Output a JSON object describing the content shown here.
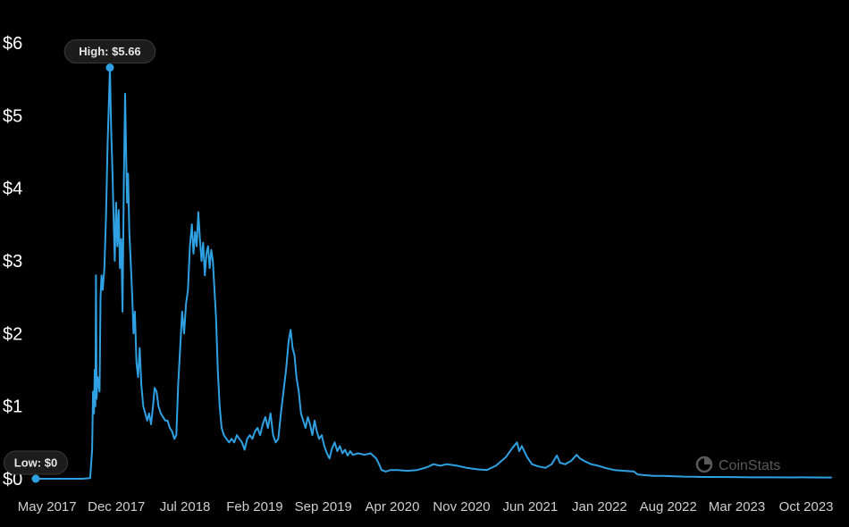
{
  "colors": {
    "background": "#000000",
    "line": "#2fa1e3",
    "pill_bg": "#1c1c1c",
    "pill_border": "#3a3a3a"
  },
  "watermark": {
    "icon": "coinstats-logo-icon",
    "text": "CoinStats"
  },
  "chart_data": {
    "type": "line",
    "title": "",
    "xlabel": "",
    "ylabel": "",
    "y_ticks": [
      "$0",
      "$1",
      "$2",
      "$3",
      "$4",
      "$5",
      "$6"
    ],
    "y_tick_values": [
      0,
      1,
      2,
      3,
      4,
      5,
      6
    ],
    "ylim": [
      0,
      6
    ],
    "x_ticks": [
      "May 2017",
      "Dec 2017",
      "Jul 2018",
      "Feb 2019",
      "Sep 2019",
      "Apr 2020",
      "Nov 2020",
      "Jun 2021",
      "Jan 2022",
      "Aug 2022",
      "Mar 2023",
      "Oct 2023"
    ],
    "x_tick_dates": [
      "2017-05-15",
      "2017-12-15",
      "2018-07-15",
      "2019-02-15",
      "2019-09-15",
      "2020-04-15",
      "2020-11-15",
      "2021-06-15",
      "2022-01-15",
      "2022-08-15",
      "2023-03-15",
      "2023-10-15"
    ],
    "xlim": [
      "2017-04-10",
      "2023-12-31"
    ],
    "grid": false,
    "annotations": [
      {
        "label": "High: $5.66",
        "x": "2017-11-25",
        "y": 5.66
      },
      {
        "label": "Low: $0",
        "x": "2017-04-10",
        "y": 0
      }
    ],
    "series": [
      {
        "points": [
          [
            "2017-04-10",
            0
          ],
          [
            "2017-05-01",
            0
          ],
          [
            "2017-06-01",
            0
          ],
          [
            "2017-07-01",
            0
          ],
          [
            "2017-08-01",
            0
          ],
          [
            "2017-09-01",
            0
          ],
          [
            "2017-09-25",
            0.01
          ],
          [
            "2017-10-01",
            0.4
          ],
          [
            "2017-10-04",
            1.2
          ],
          [
            "2017-10-07",
            0.9
          ],
          [
            "2017-10-09",
            1.5
          ],
          [
            "2017-10-11",
            1.0
          ],
          [
            "2017-10-13",
            2.8
          ],
          [
            "2017-10-15",
            1.1
          ],
          [
            "2017-10-18",
            1.4
          ],
          [
            "2017-10-21",
            1.3
          ],
          [
            "2017-10-24",
            1.2
          ],
          [
            "2017-10-27",
            2.5
          ],
          [
            "2017-10-30",
            2.8
          ],
          [
            "2017-11-03",
            2.6
          ],
          [
            "2017-11-08",
            2.9
          ],
          [
            "2017-11-13",
            3.6
          ],
          [
            "2017-11-18",
            4.6
          ],
          [
            "2017-11-25",
            5.66
          ],
          [
            "2017-11-29",
            4.8
          ],
          [
            "2017-12-03",
            4.2
          ],
          [
            "2017-12-07",
            3.5
          ],
          [
            "2017-12-10",
            3.0
          ],
          [
            "2017-12-14",
            3.8
          ],
          [
            "2017-12-18",
            3.2
          ],
          [
            "2017-12-22",
            3.7
          ],
          [
            "2017-12-26",
            2.9
          ],
          [
            "2017-12-30",
            3.3
          ],
          [
            "2018-01-03",
            2.3
          ],
          [
            "2018-01-07",
            4.1
          ],
          [
            "2018-01-11",
            5.3
          ],
          [
            "2018-01-14",
            4.5
          ],
          [
            "2018-01-17",
            3.8
          ],
          [
            "2018-01-20",
            4.2
          ],
          [
            "2018-01-24",
            3.4
          ],
          [
            "2018-01-28",
            3.0
          ],
          [
            "2018-02-02",
            2.5
          ],
          [
            "2018-02-06",
            2.0
          ],
          [
            "2018-02-10",
            2.3
          ],
          [
            "2018-02-15",
            1.6
          ],
          [
            "2018-02-20",
            1.4
          ],
          [
            "2018-02-25",
            1.8
          ],
          [
            "2018-03-02",
            1.3
          ],
          [
            "2018-03-08",
            1.0
          ],
          [
            "2018-03-14",
            0.9
          ],
          [
            "2018-03-20",
            0.8
          ],
          [
            "2018-03-26",
            0.9
          ],
          [
            "2018-04-01",
            0.75
          ],
          [
            "2018-04-07",
            1.0
          ],
          [
            "2018-04-12",
            1.25
          ],
          [
            "2018-04-18",
            1.2
          ],
          [
            "2018-04-24",
            1.0
          ],
          [
            "2018-05-01",
            0.9
          ],
          [
            "2018-05-08",
            0.85
          ],
          [
            "2018-05-15",
            0.8
          ],
          [
            "2018-05-22",
            0.8
          ],
          [
            "2018-05-29",
            0.7
          ],
          [
            "2018-06-05",
            0.65
          ],
          [
            "2018-06-12",
            0.55
          ],
          [
            "2018-06-18",
            0.6
          ],
          [
            "2018-06-24",
            1.3
          ],
          [
            "2018-06-30",
            1.8
          ],
          [
            "2018-07-06",
            2.3
          ],
          [
            "2018-07-12",
            2.0
          ],
          [
            "2018-07-18",
            2.4
          ],
          [
            "2018-07-24",
            2.6
          ],
          [
            "2018-07-30",
            3.2
          ],
          [
            "2018-08-05",
            3.5
          ],
          [
            "2018-08-10",
            3.1
          ],
          [
            "2018-08-15",
            3.4
          ],
          [
            "2018-08-20",
            3.2
          ],
          [
            "2018-08-25",
            3.67
          ],
          [
            "2018-08-30",
            3.3
          ],
          [
            "2018-09-04",
            3.0
          ],
          [
            "2018-09-09",
            3.25
          ],
          [
            "2018-09-14",
            2.8
          ],
          [
            "2018-09-19",
            3.1
          ],
          [
            "2018-09-24",
            3.2
          ],
          [
            "2018-09-29",
            2.9
          ],
          [
            "2018-10-04",
            3.15
          ],
          [
            "2018-10-09",
            3.0
          ],
          [
            "2018-10-14",
            2.6
          ],
          [
            "2018-10-19",
            2.2
          ],
          [
            "2018-10-24",
            1.5
          ],
          [
            "2018-10-30",
            1.0
          ],
          [
            "2018-11-05",
            0.7
          ],
          [
            "2018-11-12",
            0.6
          ],
          [
            "2018-11-20",
            0.55
          ],
          [
            "2018-11-28",
            0.5
          ],
          [
            "2018-12-06",
            0.55
          ],
          [
            "2018-12-14",
            0.5
          ],
          [
            "2018-12-22",
            0.6
          ],
          [
            "2018-12-30",
            0.55
          ],
          [
            "2019-01-07",
            0.5
          ],
          [
            "2019-01-15",
            0.4
          ],
          [
            "2019-01-23",
            0.55
          ],
          [
            "2019-01-31",
            0.6
          ],
          [
            "2019-02-08",
            0.55
          ],
          [
            "2019-02-16",
            0.65
          ],
          [
            "2019-02-24",
            0.7
          ],
          [
            "2019-03-04",
            0.6
          ],
          [
            "2019-03-12",
            0.75
          ],
          [
            "2019-03-20",
            0.85
          ],
          [
            "2019-03-28",
            0.7
          ],
          [
            "2019-04-05",
            0.9
          ],
          [
            "2019-04-13",
            0.6
          ],
          [
            "2019-04-21",
            0.5
          ],
          [
            "2019-04-29",
            0.55
          ],
          [
            "2019-05-07",
            0.9
          ],
          [
            "2019-05-15",
            1.2
          ],
          [
            "2019-05-23",
            1.5
          ],
          [
            "2019-05-31",
            1.9
          ],
          [
            "2019-06-06",
            2.05
          ],
          [
            "2019-06-12",
            1.8
          ],
          [
            "2019-06-18",
            1.7
          ],
          [
            "2019-06-24",
            1.4
          ],
          [
            "2019-07-01",
            1.2
          ],
          [
            "2019-07-08",
            0.9
          ],
          [
            "2019-07-15",
            0.8
          ],
          [
            "2019-07-22",
            0.7
          ],
          [
            "2019-07-29",
            0.85
          ],
          [
            "2019-08-05",
            0.75
          ],
          [
            "2019-08-12",
            0.6
          ],
          [
            "2019-08-19",
            0.8
          ],
          [
            "2019-08-26",
            0.65
          ],
          [
            "2019-09-02",
            0.55
          ],
          [
            "2019-09-10",
            0.6
          ],
          [
            "2019-09-18",
            0.45
          ],
          [
            "2019-09-26",
            0.35
          ],
          [
            "2019-10-04",
            0.28
          ],
          [
            "2019-10-12",
            0.42
          ],
          [
            "2019-10-20",
            0.5
          ],
          [
            "2019-10-28",
            0.38
          ],
          [
            "2019-11-05",
            0.45
          ],
          [
            "2019-11-13",
            0.35
          ],
          [
            "2019-11-21",
            0.4
          ],
          [
            "2019-11-29",
            0.32
          ],
          [
            "2019-12-07",
            0.38
          ],
          [
            "2019-12-15",
            0.33
          ],
          [
            "2020-01-01",
            0.35
          ],
          [
            "2020-01-20",
            0.33
          ],
          [
            "2020-02-08",
            0.35
          ],
          [
            "2020-02-25",
            0.28
          ],
          [
            "2020-03-05",
            0.2
          ],
          [
            "2020-03-13",
            0.12
          ],
          [
            "2020-03-25",
            0.1
          ],
          [
            "2020-04-10",
            0.12
          ],
          [
            "2020-05-01",
            0.12
          ],
          [
            "2020-06-01",
            0.11
          ],
          [
            "2020-07-01",
            0.12
          ],
          [
            "2020-08-01",
            0.16
          ],
          [
            "2020-08-20",
            0.2
          ],
          [
            "2020-09-10",
            0.18
          ],
          [
            "2020-10-01",
            0.2
          ],
          [
            "2020-11-01",
            0.18
          ],
          [
            "2020-12-01",
            0.15
          ],
          [
            "2021-01-01",
            0.13
          ],
          [
            "2021-02-01",
            0.12
          ],
          [
            "2021-03-01",
            0.18
          ],
          [
            "2021-04-01",
            0.3
          ],
          [
            "2021-04-20",
            0.42
          ],
          [
            "2021-05-05",
            0.5
          ],
          [
            "2021-05-12",
            0.38
          ],
          [
            "2021-05-20",
            0.45
          ],
          [
            "2021-06-05",
            0.3
          ],
          [
            "2021-06-20",
            0.2
          ],
          [
            "2021-07-10",
            0.17
          ],
          [
            "2021-08-01",
            0.15
          ],
          [
            "2021-08-20",
            0.2
          ],
          [
            "2021-09-05",
            0.32
          ],
          [
            "2021-09-15",
            0.22
          ],
          [
            "2021-10-01",
            0.2
          ],
          [
            "2021-10-20",
            0.25
          ],
          [
            "2021-11-05",
            0.33
          ],
          [
            "2021-11-15",
            0.28
          ],
          [
            "2021-12-01",
            0.24
          ],
          [
            "2021-12-20",
            0.2
          ],
          [
            "2022-01-10",
            0.18
          ],
          [
            "2022-02-01",
            0.15
          ],
          [
            "2022-03-01",
            0.12
          ],
          [
            "2022-04-01",
            0.11
          ],
          [
            "2022-05-01",
            0.1
          ],
          [
            "2022-05-12",
            0.06
          ],
          [
            "2022-06-01",
            0.05
          ],
          [
            "2022-07-01",
            0.04
          ],
          [
            "2022-08-01",
            0.04
          ],
          [
            "2022-09-01",
            0.035
          ],
          [
            "2022-10-01",
            0.03
          ],
          [
            "2022-11-01",
            0.028
          ],
          [
            "2022-12-01",
            0.025
          ],
          [
            "2023-01-01",
            0.025
          ],
          [
            "2023-03-01",
            0.023
          ],
          [
            "2023-05-01",
            0.02
          ],
          [
            "2023-07-01",
            0.02
          ],
          [
            "2023-09-01",
            0.018
          ],
          [
            "2023-10-01",
            0.02
          ],
          [
            "2023-11-01",
            0.018
          ],
          [
            "2023-12-31",
            0.017
          ]
        ]
      }
    ]
  }
}
